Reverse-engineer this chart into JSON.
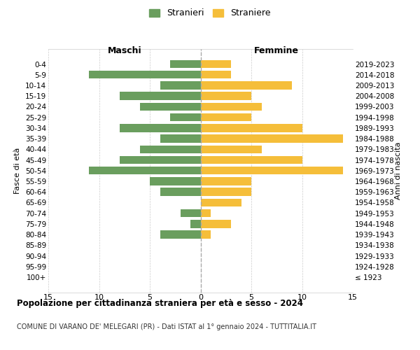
{
  "age_groups": [
    "0-4",
    "5-9",
    "10-14",
    "15-19",
    "20-24",
    "25-29",
    "30-34",
    "35-39",
    "40-44",
    "45-49",
    "50-54",
    "55-59",
    "60-64",
    "65-69",
    "70-74",
    "75-79",
    "80-84",
    "85-89",
    "90-94",
    "95-99",
    "100+"
  ],
  "birth_years": [
    "2019-2023",
    "2014-2018",
    "2009-2013",
    "2004-2008",
    "1999-2003",
    "1994-1998",
    "1989-1993",
    "1984-1988",
    "1979-1983",
    "1974-1978",
    "1969-1973",
    "1964-1968",
    "1959-1963",
    "1954-1958",
    "1949-1953",
    "1944-1948",
    "1939-1943",
    "1934-1938",
    "1929-1933",
    "1924-1928",
    "≤ 1923"
  ],
  "males": [
    3,
    11,
    4,
    8,
    6,
    3,
    8,
    4,
    6,
    8,
    11,
    5,
    4,
    0,
    2,
    1,
    4,
    0,
    0,
    0,
    0
  ],
  "females": [
    3,
    3,
    9,
    5,
    6,
    5,
    10,
    14,
    6,
    10,
    14,
    5,
    5,
    4,
    1,
    3,
    1,
    0,
    0,
    0,
    0
  ],
  "male_color": "#6a9e5e",
  "female_color": "#f5be3a",
  "background_color": "#ffffff",
  "grid_color": "#cccccc",
  "title": "Popolazione per cittadinanza straniera per età e sesso - 2024",
  "subtitle": "COMUNE DI VARANO DE' MELEGARI (PR) - Dati ISTAT al 1° gennaio 2024 - TUTTITALIA.IT",
  "xlabel_left": "Maschi",
  "xlabel_right": "Femmine",
  "ylabel_left": "Fasce di età",
  "ylabel_right": "Anni di nascita",
  "legend_male": "Stranieri",
  "legend_female": "Straniere",
  "xlim": 15,
  "center_line_color": "#aaaaaa"
}
